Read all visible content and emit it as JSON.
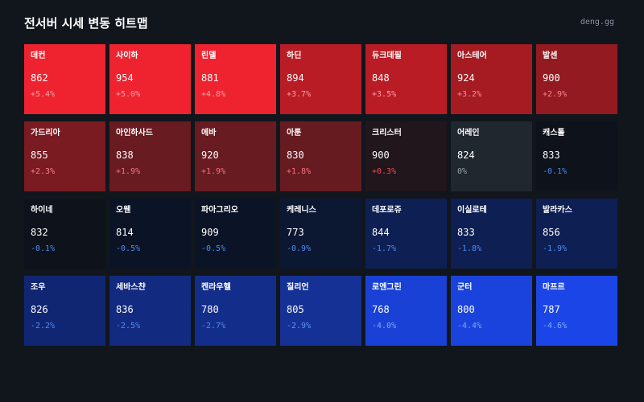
{
  "header": {
    "title": "전서버 시세 변동 히트맵",
    "site": "deng.gg"
  },
  "tiles": [
    {
      "name": "데컨",
      "price": "862",
      "change": "+5.4%",
      "bg": "#ef2330",
      "fg": "#f2a3a8"
    },
    {
      "name": "사이하",
      "price": "954",
      "change": "+5.0%",
      "bg": "#ef2330",
      "fg": "#f2a3a8"
    },
    {
      "name": "린델",
      "price": "881",
      "change": "+4.8%",
      "bg": "#ef2330",
      "fg": "#f2a3a8"
    },
    {
      "name": "하딘",
      "price": "894",
      "change": "+3.7%",
      "bg": "#ba1c25",
      "fg": "#f7a1a7"
    },
    {
      "name": "듀크데필",
      "price": "848",
      "change": "+3.5%",
      "bg": "#ba1c25",
      "fg": "#f7a1a7"
    },
    {
      "name": "아스테어",
      "price": "924",
      "change": "+3.2%",
      "bg": "#a61b22",
      "fg": "#f4909a"
    },
    {
      "name": "발센",
      "price": "900",
      "change": "+2.9%",
      "bg": "#941a21",
      "fg": "#f48793"
    },
    {
      "name": "가드리아",
      "price": "855",
      "change": "+2.3%",
      "bg": "#791b20",
      "fg": "#f7808b"
    },
    {
      "name": "아인하사드",
      "price": "838",
      "change": "+1.9%",
      "bg": "#681b20",
      "fg": "#f5727f"
    },
    {
      "name": "에바",
      "price": "920",
      "change": "+1.9%",
      "bg": "#681b20",
      "fg": "#f5727f"
    },
    {
      "name": "아툰",
      "price": "830",
      "change": "+1.8%",
      "bg": "#661b20",
      "fg": "#f5727f"
    },
    {
      "name": "크리스터",
      "price": "900",
      "change": "+0.3%",
      "bg": "#20161b",
      "fg": "#f04a58"
    },
    {
      "name": "어레인",
      "price": "824",
      "change": "0%",
      "bg": "#21272f",
      "fg": "#9aa3ad"
    },
    {
      "name": "캐스톨",
      "price": "833",
      "change": "-0.1%",
      "bg": "#0d121b",
      "fg": "#4f8bf0"
    },
    {
      "name": "하이네",
      "price": "832",
      "change": "-0.1%",
      "bg": "#0d121b",
      "fg": "#4f8bf0"
    },
    {
      "name": "오웬",
      "price": "814",
      "change": "-0.5%",
      "bg": "#0b1426",
      "fg": "#4f8bf0"
    },
    {
      "name": "파아그리오",
      "price": "909",
      "change": "-0.5%",
      "bg": "#0b1426",
      "fg": "#4f8bf0"
    },
    {
      "name": "케레니스",
      "price": "773",
      "change": "-0.9%",
      "bg": "#0c1732",
      "fg": "#4f8bf0"
    },
    {
      "name": "데포로쥬",
      "price": "844",
      "change": "-1.7%",
      "bg": "#0e1f54",
      "fg": "#4f8bf0"
    },
    {
      "name": "이실로테",
      "price": "833",
      "change": "-1.8%",
      "bg": "#0e1f54",
      "fg": "#4f8bf0"
    },
    {
      "name": "발라카스",
      "price": "856",
      "change": "-1.9%",
      "bg": "#0e1f54",
      "fg": "#4f8bf0"
    },
    {
      "name": "조우",
      "price": "826",
      "change": "-2.2%",
      "bg": "#102673",
      "fg": "#4f8bf0"
    },
    {
      "name": "세바스챤",
      "price": "836",
      "change": "-2.5%",
      "bg": "#122a80",
      "fg": "#4f8bf0"
    },
    {
      "name": "켄라우헬",
      "price": "780",
      "change": "-2.7%",
      "bg": "#132d8a",
      "fg": "#4f8bf0"
    },
    {
      "name": "질리언",
      "price": "805",
      "change": "-2.9%",
      "bg": "#153196",
      "fg": "#5b92f2"
    },
    {
      "name": "로엔그린",
      "price": "768",
      "change": "-4.0%",
      "bg": "#1941d5",
      "fg": "#7ea8f7"
    },
    {
      "name": "군터",
      "price": "800",
      "change": "-4.4%",
      "bg": "#1a43de",
      "fg": "#7ea8f7"
    },
    {
      "name": "마프르",
      "price": "787",
      "change": "-4.6%",
      "bg": "#1b45e6",
      "fg": "#84adf8"
    }
  ]
}
